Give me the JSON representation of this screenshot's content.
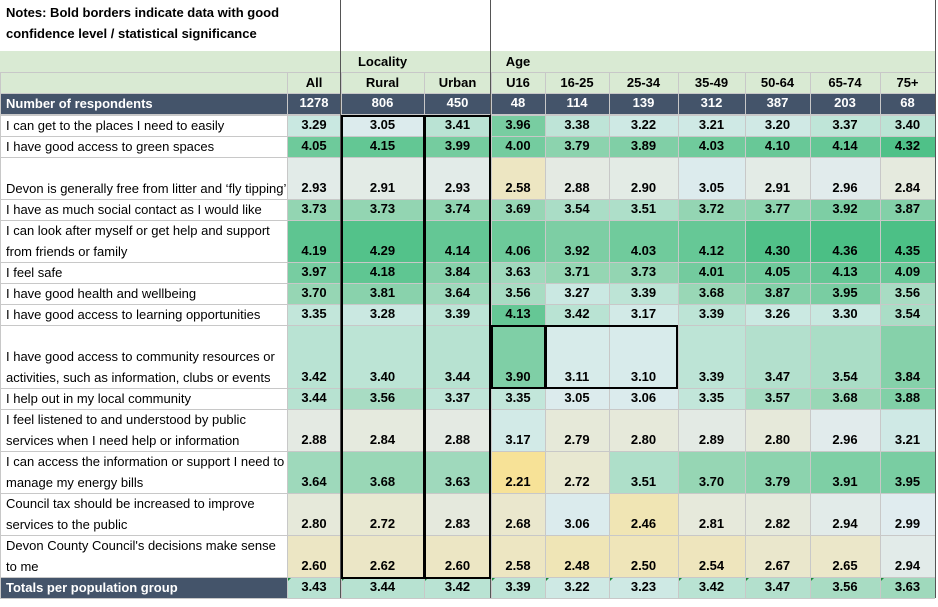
{
  "notes": "Notes: Bold borders indicate data with good confidence level / statistical significance",
  "group_headers": {
    "locality": "Locality",
    "age": "Age"
  },
  "columns": [
    "All",
    "Rural",
    "Urban",
    "U16",
    "16-25",
    "25-34",
    "35-49",
    "50-64",
    "65-74",
    "75+"
  ],
  "respondents": {
    "label": "Number of respondents",
    "values": [
      "1278",
      "806",
      "450",
      "48",
      "114",
      "139",
      "312",
      "387",
      "203",
      "68"
    ]
  },
  "rows": [
    {
      "label": "I can get to the places I need to easily",
      "values": [
        "3.29",
        "3.05",
        "3.41",
        "3.96",
        "3.38",
        "3.22",
        "3.21",
        "3.20",
        "3.37",
        "3.40"
      ]
    },
    {
      "label": "I have good access to green spaces",
      "values": [
        "4.05",
        "4.15",
        "3.99",
        "4.00",
        "3.79",
        "3.89",
        "4.03",
        "4.10",
        "4.14",
        "4.32"
      ]
    },
    {
      "label": "Devon is generally free from litter and ‘fly tipping’",
      "values": [
        "2.93",
        "2.91",
        "2.93",
        "2.58",
        "2.88",
        "2.90",
        "3.05",
        "2.91",
        "2.96",
        "2.84"
      ]
    },
    {
      "label": "I have as much social contact as I would like",
      "values": [
        "3.73",
        "3.73",
        "3.74",
        "3.69",
        "3.54",
        "3.51",
        "3.72",
        "3.77",
        "3.92",
        "3.87"
      ]
    },
    {
      "label": "I can look after myself or get help and support from friends or family",
      "values": [
        "4.19",
        "4.29",
        "4.14",
        "4.06",
        "3.92",
        "4.03",
        "4.12",
        "4.30",
        "4.36",
        "4.35"
      ]
    },
    {
      "label": "I feel safe",
      "values": [
        "3.97",
        "4.18",
        "3.84",
        "3.63",
        "3.71",
        "3.73",
        "4.01",
        "4.05",
        "4.13",
        "4.09"
      ]
    },
    {
      "label": "I have good health and wellbeing",
      "values": [
        "3.70",
        "3.81",
        "3.64",
        "3.56",
        "3.27",
        "3.39",
        "3.68",
        "3.87",
        "3.95",
        "3.56"
      ]
    },
    {
      "label": "I have good access to learning opportunities",
      "values": [
        "3.35",
        "3.28",
        "3.39",
        "4.13",
        "3.42",
        "3.17",
        "3.39",
        "3.26",
        "3.30",
        "3.54"
      ]
    },
    {
      "label": "I have good access to community resources or activities, such as information, clubs or events",
      "values": [
        "3.42",
        "3.40",
        "3.44",
        "3.90",
        "3.11",
        "3.10",
        "3.39",
        "3.47",
        "3.54",
        "3.84"
      ]
    },
    {
      "label": "I help out in my local community",
      "values": [
        "3.44",
        "3.56",
        "3.37",
        "3.35",
        "3.05",
        "3.06",
        "3.35",
        "3.57",
        "3.68",
        "3.88"
      ]
    },
    {
      "label": "I feel listened to and understood by public services when I need help or information",
      "values": [
        "2.88",
        "2.84",
        "2.88",
        "3.17",
        "2.79",
        "2.80",
        "2.89",
        "2.80",
        "2.96",
        "3.21"
      ]
    },
    {
      "label": "I can access the information or support I need to manage my energy bills",
      "values": [
        "3.64",
        "3.68",
        "3.63",
        "2.21",
        "2.72",
        "3.51",
        "3.70",
        "3.79",
        "3.91",
        "3.95"
      ]
    },
    {
      "label": "Council tax should be increased to improve services to the public",
      "values": [
        "2.80",
        "2.72",
        "2.83",
        "2.68",
        "3.06",
        "2.46",
        "2.81",
        "2.82",
        "2.94",
        "2.99"
      ]
    },
    {
      "label": "Devon County Council's decisions make sense to me",
      "values": [
        "2.60",
        "2.62",
        "2.60",
        "2.58",
        "2.48",
        "2.50",
        "2.54",
        "2.67",
        "2.65",
        "2.94"
      ]
    }
  ],
  "totals": {
    "label": "Totals per population group",
    "values": [
      "3.43",
      "3.44",
      "3.42",
      "3.39",
      "3.22",
      "3.23",
      "3.42",
      "3.47",
      "3.56",
      "3.63"
    ]
  },
  "colors": {
    "header_band": "#d9ead3",
    "respondents_bar": "#44546a",
    "respondents_text": "#ffffff",
    "grid": "#c8c8c8",
    "bold_border": "#000000"
  }
}
